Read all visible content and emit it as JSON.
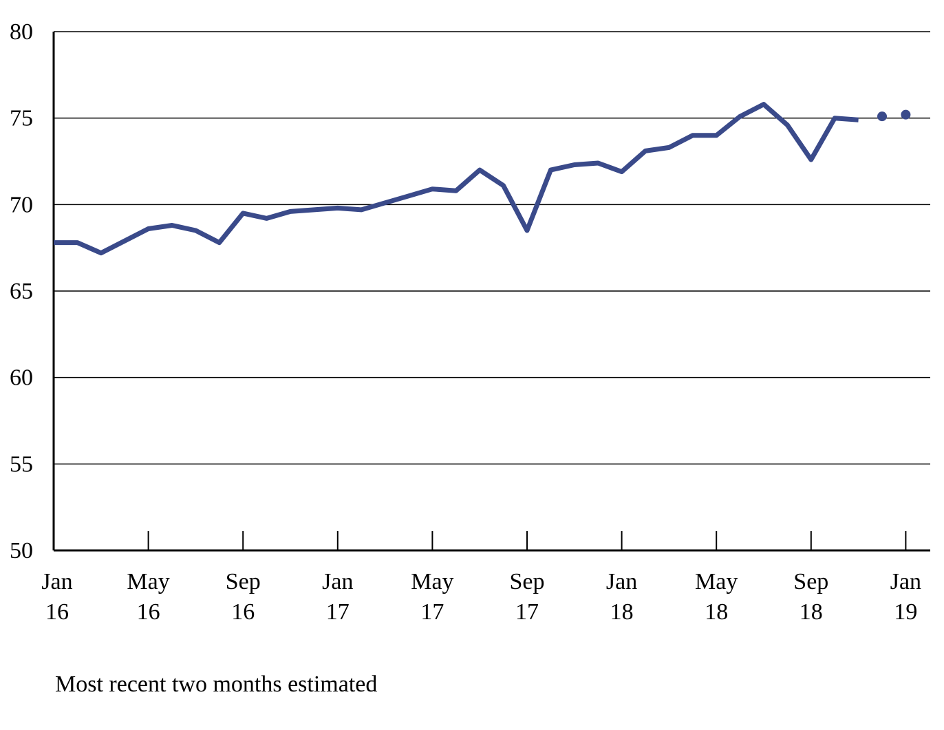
{
  "chart_data": {
    "type": "line",
    "title": "",
    "xlabel": "",
    "ylabel": "",
    "ylim": [
      50,
      80
    ],
    "yticks": [
      50,
      55,
      60,
      65,
      70,
      75,
      80
    ],
    "grid": true,
    "x_tick_labels": [
      {
        "month": "Jan",
        "year": "16"
      },
      {
        "month": "May",
        "year": "16"
      },
      {
        "month": "Sep",
        "year": "16"
      },
      {
        "month": "Jan",
        "year": "17"
      },
      {
        "month": "May",
        "year": "17"
      },
      {
        "month": "Sep",
        "year": "17"
      },
      {
        "month": "Jan",
        "year": "18"
      },
      {
        "month": "May",
        "year": "18"
      },
      {
        "month": "Sep",
        "year": "18"
      },
      {
        "month": "Jan",
        "year": "19"
      }
    ],
    "series": [
      {
        "color": "#3a4a8a",
        "style": "solid",
        "points": [
          {
            "x": "2016-01",
            "y": 67.8
          },
          {
            "x": "2016-02",
            "y": 67.8
          },
          {
            "x": "2016-03",
            "y": 67.2
          },
          {
            "x": "2016-04",
            "y": 67.9
          },
          {
            "x": "2016-05",
            "y": 68.6
          },
          {
            "x": "2016-06",
            "y": 68.8
          },
          {
            "x": "2016-07",
            "y": 68.5
          },
          {
            "x": "2016-08",
            "y": 67.8
          },
          {
            "x": "2016-09",
            "y": 69.5
          },
          {
            "x": "2016-10",
            "y": 69.2
          },
          {
            "x": "2016-11",
            "y": 69.6
          },
          {
            "x": "2016-12",
            "y": 69.7
          },
          {
            "x": "2017-01",
            "y": 69.8
          },
          {
            "x": "2017-02",
            "y": 69.7
          },
          {
            "x": "2017-03",
            "y": 70.1
          },
          {
            "x": "2017-04",
            "y": 70.5
          },
          {
            "x": "2017-05",
            "y": 70.9
          },
          {
            "x": "2017-06",
            "y": 70.8
          },
          {
            "x": "2017-07",
            "y": 72.0
          },
          {
            "x": "2017-08",
            "y": 71.1
          },
          {
            "x": "2017-09",
            "y": 68.5
          },
          {
            "x": "2017-10",
            "y": 72.0
          },
          {
            "x": "2017-11",
            "y": 72.3
          },
          {
            "x": "2017-12",
            "y": 72.4
          },
          {
            "x": "2018-01",
            "y": 71.9
          },
          {
            "x": "2018-02",
            "y": 73.1
          },
          {
            "x": "2018-03",
            "y": 73.3
          },
          {
            "x": "2018-04",
            "y": 74.0
          },
          {
            "x": "2018-05",
            "y": 74.0
          },
          {
            "x": "2018-06",
            "y": 75.1
          },
          {
            "x": "2018-07",
            "y": 75.8
          },
          {
            "x": "2018-08",
            "y": 74.6
          },
          {
            "x": "2018-09",
            "y": 72.6
          },
          {
            "x": "2018-10",
            "y": 75.0
          },
          {
            "x": "2018-11",
            "y": 74.9
          }
        ]
      },
      {
        "color": "#3a4a8a",
        "style": "dotted",
        "points": [
          {
            "x": "2018-12",
            "y": 75.1
          },
          {
            "x": "2019-01",
            "y": 75.2
          }
        ]
      }
    ],
    "note": "Most recent two months estimated"
  }
}
